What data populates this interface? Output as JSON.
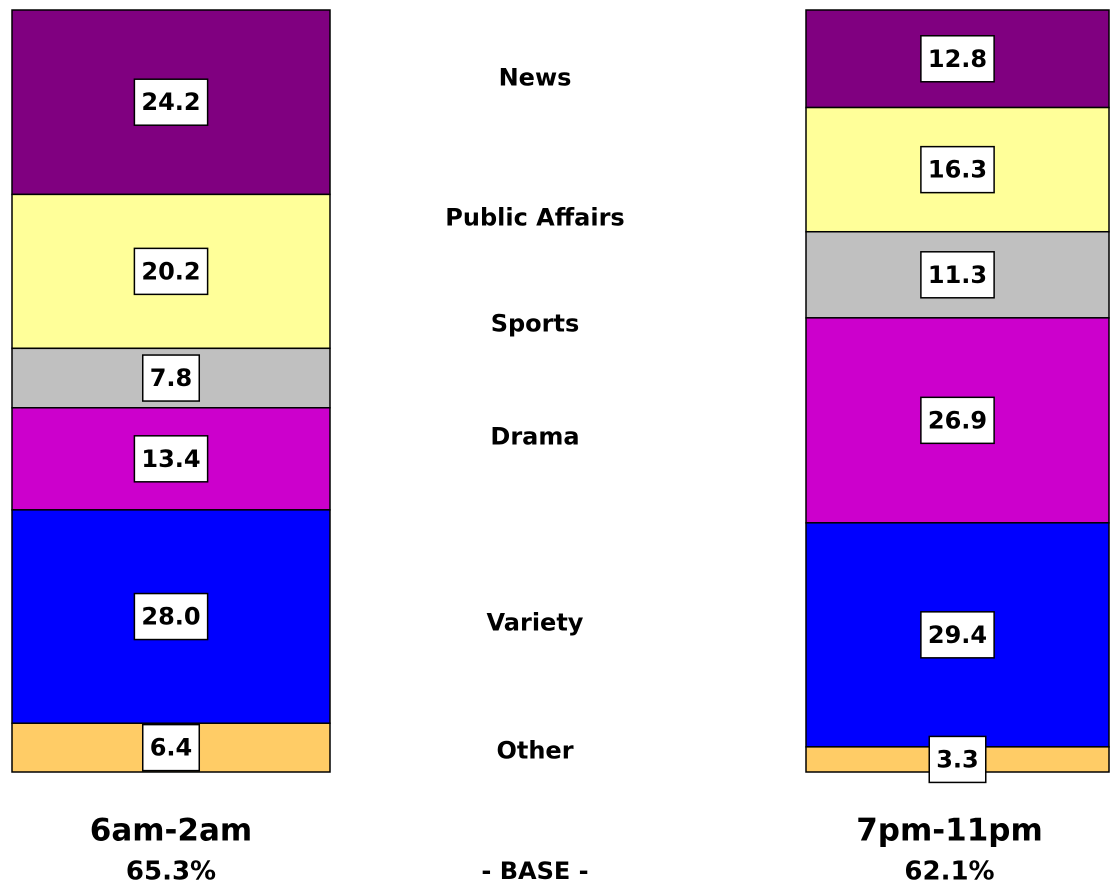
{
  "chart_data": {
    "type": "bar",
    "stacked": true,
    "categories": [
      "6am-2am",
      "7pm-11pm"
    ],
    "base_labels": [
      "65.3%",
      "62.1%"
    ],
    "base_title": "- BASE -",
    "ylim": [
      0,
      100
    ],
    "series": [
      {
        "name": "News",
        "color": "#800080",
        "values": [
          24.2,
          12.8
        ],
        "value_labels": [
          "24.2",
          "12.8"
        ]
      },
      {
        "name": "Public Affairs",
        "color": "#ffff99",
        "values": [
          20.2,
          16.3
        ],
        "value_labels": [
          "20.2",
          "16.3"
        ]
      },
      {
        "name": "Sports",
        "color": "#c0c0c0",
        "values": [
          7.8,
          11.3
        ],
        "value_labels": [
          "7.8",
          "11.3"
        ]
      },
      {
        "name": "Drama",
        "color": "#cc00cc",
        "values": [
          13.4,
          26.9
        ],
        "value_labels": [
          "13.4",
          "26.9"
        ]
      },
      {
        "name": "Variety",
        "color": "#0000ff",
        "values": [
          28,
          29.4
        ],
        "value_labels": [
          "28.0",
          "29.4"
        ]
      },
      {
        "name": "Other",
        "color": "#ffcc66",
        "values": [
          6.4,
          3.3
        ],
        "value_labels": [
          "6.4",
          "3.3"
        ]
      }
    ]
  }
}
